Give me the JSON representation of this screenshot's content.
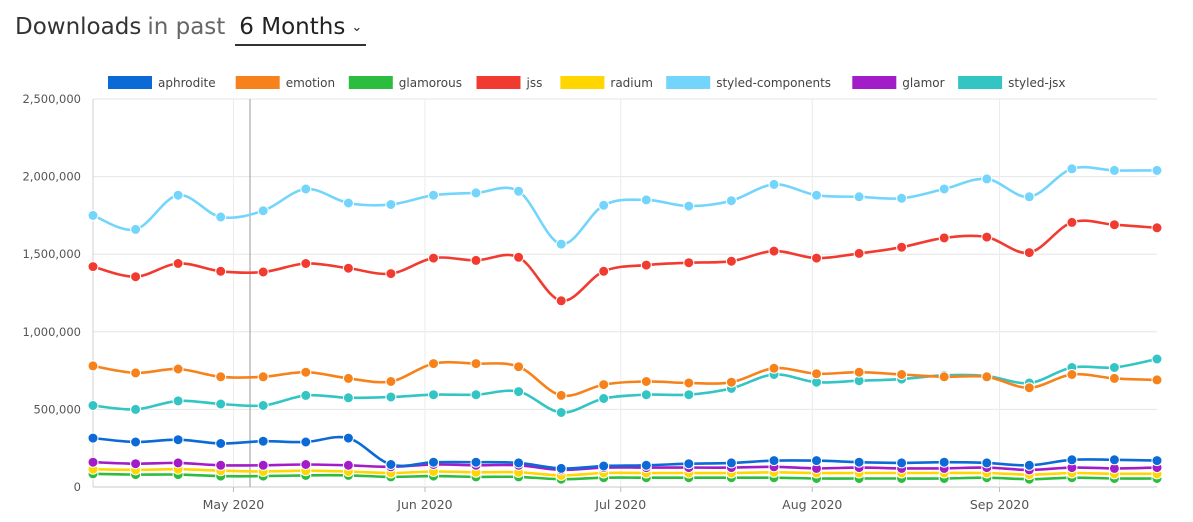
{
  "header": {
    "title": "Downloads",
    "in_past": "in past",
    "period": "6 Months"
  },
  "chart_data": {
    "type": "line",
    "title": "Downloads in past 6 Months",
    "xlabel": "",
    "ylabel": "",
    "ylim": [
      0,
      2500000
    ],
    "yticks": [
      0,
      500000,
      1000000,
      1500000,
      2000000,
      2500000
    ],
    "ytick_labels": [
      "0",
      "500,000",
      "1,000,000",
      "1,500,000",
      "2,000,000",
      "2,500,000"
    ],
    "xtick_labels": [
      "May 2020",
      "Jun 2020",
      "Jul 2020",
      "Aug 2020",
      "Sep 2020"
    ],
    "xtick_positions": [
      3.3,
      7.8,
      12.4,
      16.9,
      21.3
    ],
    "x_count": 26,
    "grid": true,
    "legend_position": "top",
    "series": [
      {
        "name": "aphrodite",
        "color": "#0b6ad6",
        "values": [
          315000,
          290000,
          305000,
          280000,
          295000,
          290000,
          315000,
          145000,
          160000,
          160000,
          155000,
          120000,
          135000,
          140000,
          150000,
          155000,
          170000,
          170000,
          160000,
          155000,
          160000,
          155000,
          140000,
          175000,
          175000,
          170000
        ]
      },
      {
        "name": "emotion",
        "color": "#f7821b",
        "values": [
          780000,
          735000,
          760000,
          710000,
          710000,
          740000,
          700000,
          680000,
          795000,
          795000,
          775000,
          590000,
          660000,
          680000,
          670000,
          675000,
          765000,
          730000,
          740000,
          725000,
          710000,
          710000,
          640000,
          725000,
          700000,
          690000
        ]
      },
      {
        "name": "glamorous",
        "color": "#2cbd3f",
        "values": [
          85000,
          80000,
          80000,
          70000,
          70000,
          75000,
          75000,
          65000,
          70000,
          65000,
          65000,
          50000,
          60000,
          60000,
          60000,
          60000,
          60000,
          55000,
          55000,
          55000,
          55000,
          60000,
          50000,
          60000,
          55000,
          55000
        ]
      },
      {
        "name": "jss",
        "color": "#f23b30",
        "values": [
          1420000,
          1355000,
          1440000,
          1390000,
          1385000,
          1440000,
          1410000,
          1375000,
          1475000,
          1460000,
          1480000,
          1200000,
          1390000,
          1430000,
          1445000,
          1455000,
          1520000,
          1475000,
          1505000,
          1545000,
          1605000,
          1610000,
          1510000,
          1705000,
          1690000,
          1670000
        ]
      },
      {
        "name": "radium",
        "color": "#ffd600",
        "values": [
          115000,
          110000,
          115000,
          105000,
          100000,
          105000,
          100000,
          90000,
          100000,
          95000,
          95000,
          75000,
          90000,
          90000,
          90000,
          90000,
          95000,
          90000,
          90000,
          90000,
          90000,
          90000,
          80000,
          90000,
          85000,
          85000
        ]
      },
      {
        "name": "styled-components",
        "color": "#73d5fb",
        "values": [
          1750000,
          1660000,
          1880000,
          1740000,
          1780000,
          1920000,
          1830000,
          1820000,
          1880000,
          1895000,
          1905000,
          1565000,
          1815000,
          1850000,
          1810000,
          1845000,
          1950000,
          1880000,
          1870000,
          1860000,
          1920000,
          1985000,
          1870000,
          2050000,
          2040000,
          2040000
        ]
      },
      {
        "name": "glamor",
        "color": "#a21cc8",
        "values": [
          160000,
          150000,
          155000,
          140000,
          140000,
          145000,
          140000,
          130000,
          145000,
          140000,
          140000,
          110000,
          125000,
          125000,
          125000,
          125000,
          130000,
          120000,
          125000,
          120000,
          120000,
          125000,
          110000,
          125000,
          120000,
          125000
        ]
      },
      {
        "name": "styled-jsx",
        "color": "#33c4c4",
        "values": [
          525000,
          500000,
          555000,
          535000,
          525000,
          590000,
          575000,
          580000,
          595000,
          595000,
          615000,
          480000,
          570000,
          595000,
          595000,
          635000,
          725000,
          675000,
          685000,
          695000,
          720000,
          715000,
          670000,
          770000,
          770000,
          825000
        ]
      }
    ]
  }
}
